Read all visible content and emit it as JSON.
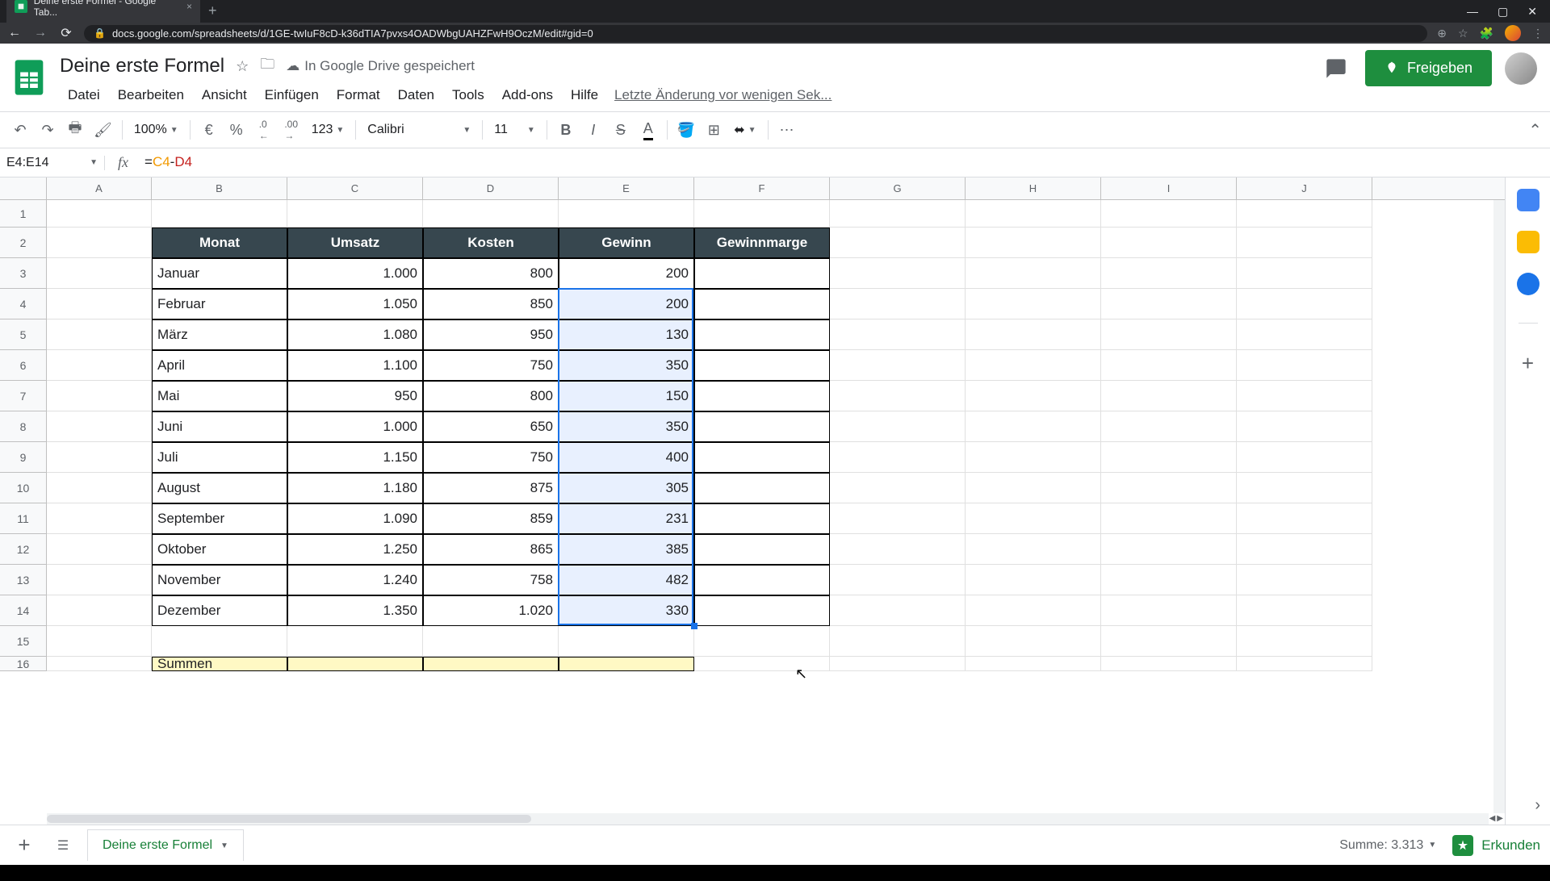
{
  "browser": {
    "tab_title": "Deine erste Formel - Google Tab...",
    "url": "docs.google.com/spreadsheets/d/1GE-twIuF8cD-k36dTIA7pvxs4OADWbgUAHZFwH9OczM/edit#gid=0"
  },
  "doc": {
    "title": "Deine erste Formel",
    "save_status": "In Google Drive gespeichert",
    "last_edit": "Letzte Änderung vor wenigen Sek...",
    "share_label": "Freigeben"
  },
  "menu": {
    "file": "Datei",
    "edit": "Bearbeiten",
    "view": "Ansicht",
    "insert": "Einfügen",
    "format": "Format",
    "data": "Daten",
    "tools": "Tools",
    "addons": "Add-ons",
    "help": "Hilfe"
  },
  "toolbar": {
    "zoom": "100%",
    "currency": "€",
    "percent": "%",
    "dec_less": ".0",
    "dec_more": ".00",
    "num_format": "123",
    "font": "Calibri",
    "font_size": "11"
  },
  "namebox": "E4:E14",
  "formula": {
    "eq": "=",
    "ref1": "C4",
    "op": "-",
    "ref2": "D4"
  },
  "columns": [
    "A",
    "B",
    "C",
    "D",
    "E",
    "F",
    "G",
    "H",
    "I",
    "J"
  ],
  "col_widths": {
    "A": 130,
    "B": 168,
    "C": 168,
    "D": 168,
    "E": 168,
    "F": 168,
    "G": 168,
    "H": 168,
    "I": 168,
    "J": 168
  },
  "table": {
    "headers": [
      "Monat",
      "Umsatz",
      "Kosten",
      "Gewinn",
      "Gewinnmarge"
    ],
    "header_bg": "#37474f",
    "header_fg": "#ffffff",
    "rows": [
      {
        "m": "Januar",
        "u": "1.000",
        "k": "800",
        "g": "200"
      },
      {
        "m": "Februar",
        "u": "1.050",
        "k": "850",
        "g": "200"
      },
      {
        "m": "März",
        "u": "1.080",
        "k": "950",
        "g": "130"
      },
      {
        "m": "April",
        "u": "1.100",
        "k": "750",
        "g": "350"
      },
      {
        "m": "Mai",
        "u": "950",
        "k": "800",
        "g": "150"
      },
      {
        "m": "Juni",
        "u": "1.000",
        "k": "650",
        "g": "350"
      },
      {
        "m": "Juli",
        "u": "1.150",
        "k": "750",
        "g": "400"
      },
      {
        "m": "August",
        "u": "1.180",
        "k": "875",
        "g": "305"
      },
      {
        "m": "September",
        "u": "1.090",
        "k": "859",
        "g": "231"
      },
      {
        "m": "Oktober",
        "u": "1.250",
        "k": "865",
        "g": "385"
      },
      {
        "m": "November",
        "u": "1.240",
        "k": "758",
        "g": "482"
      },
      {
        "m": "Dezember",
        "u": "1.350",
        "k": "1.020",
        "g": "330"
      }
    ],
    "summary_label": "Summen",
    "summary_bg": "#fff9c4"
  },
  "selection": {
    "range": "E4:E14",
    "col": "E",
    "row_start": 4,
    "row_end": 14,
    "bg": "#e8f0fe",
    "border": "#1a73e8"
  },
  "bottom": {
    "sheet_name": "Deine erste Formel",
    "sum_label": "Summe: 3.313",
    "explore_label": "Erkunden"
  },
  "row_count": 16
}
